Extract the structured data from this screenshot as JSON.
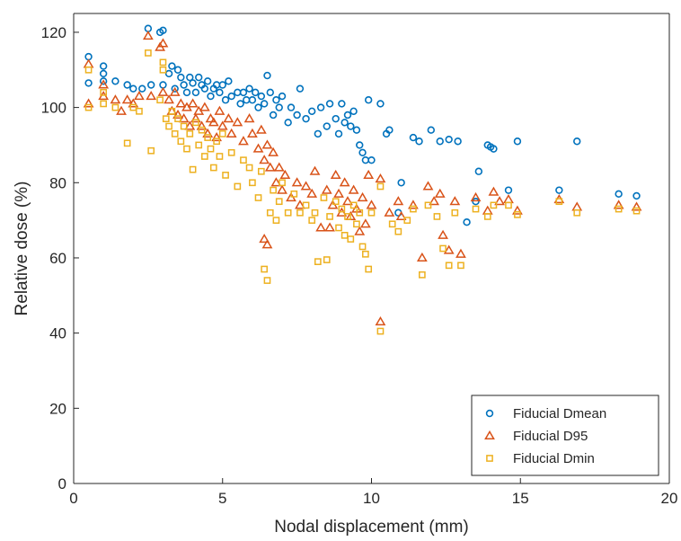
{
  "chart_data": {
    "type": "scatter",
    "xlabel": "Nodal displacement (mm)",
    "ylabel": "Relative dose (%)",
    "xlim": [
      0,
      20
    ],
    "ylim": [
      0,
      125
    ],
    "xticks": [
      0,
      5,
      10,
      15,
      20
    ],
    "yticks": [
      0,
      20,
      40,
      60,
      80,
      100,
      120
    ],
    "grid": false,
    "legend_position": "bottom-right",
    "series": [
      {
        "name": "Fiducial Dmean",
        "marker": "circle",
        "color": "#0072BD",
        "points": [
          [
            0.5,
            113.5
          ],
          [
            0.5,
            106.5
          ],
          [
            1.0,
            111.0
          ],
          [
            1.0,
            109.0
          ],
          [
            1.0,
            107.0
          ],
          [
            1.4,
            107.0
          ],
          [
            1.8,
            106.0
          ],
          [
            2.0,
            105.0
          ],
          [
            2.3,
            105.0
          ],
          [
            2.5,
            121.0
          ],
          [
            2.6,
            106.0
          ],
          [
            2.9,
            120.0
          ],
          [
            3.0,
            120.5
          ],
          [
            3.0,
            106.0
          ],
          [
            3.2,
            109.0
          ],
          [
            3.3,
            111.0
          ],
          [
            3.4,
            105.0
          ],
          [
            3.5,
            110.0
          ],
          [
            3.6,
            108.0
          ],
          [
            3.7,
            106.0
          ],
          [
            3.8,
            104.0
          ],
          [
            3.9,
            108.0
          ],
          [
            4.0,
            106.5
          ],
          [
            4.1,
            104.0
          ],
          [
            4.2,
            108.0
          ],
          [
            4.3,
            106.0
          ],
          [
            4.4,
            105.0
          ],
          [
            4.5,
            107.0
          ],
          [
            4.6,
            103.0
          ],
          [
            4.7,
            105.0
          ],
          [
            4.8,
            106.0
          ],
          [
            4.9,
            104.0
          ],
          [
            5.0,
            106.0
          ],
          [
            5.1,
            102.0
          ],
          [
            5.2,
            107.0
          ],
          [
            5.3,
            103.0
          ],
          [
            5.5,
            104.0
          ],
          [
            5.6,
            101.0
          ],
          [
            5.7,
            104.0
          ],
          [
            5.8,
            102.0
          ],
          [
            5.9,
            105.0
          ],
          [
            6.0,
            102.0
          ],
          [
            6.1,
            104.0
          ],
          [
            6.2,
            100.0
          ],
          [
            6.3,
            103.0
          ],
          [
            6.4,
            101.0
          ],
          [
            6.5,
            108.5
          ],
          [
            6.6,
            104.0
          ],
          [
            6.7,
            98.0
          ],
          [
            6.8,
            102.0
          ],
          [
            6.9,
            100.0
          ],
          [
            7.0,
            103.0
          ],
          [
            7.2,
            96.0
          ],
          [
            7.3,
            100.0
          ],
          [
            7.5,
            98.0
          ],
          [
            7.6,
            105.0
          ],
          [
            7.8,
            97.0
          ],
          [
            8.0,
            99.0
          ],
          [
            8.2,
            93.0
          ],
          [
            8.3,
            100.0
          ],
          [
            8.5,
            95.0
          ],
          [
            8.6,
            101.0
          ],
          [
            8.8,
            97.0
          ],
          [
            8.9,
            93.0
          ],
          [
            9.0,
            101.0
          ],
          [
            9.1,
            96.0
          ],
          [
            9.2,
            98.0
          ],
          [
            9.3,
            95.0
          ],
          [
            9.4,
            99.0
          ],
          [
            9.5,
            94.0
          ],
          [
            9.6,
            90.0
          ],
          [
            9.7,
            88.0
          ],
          [
            9.8,
            86.0
          ],
          [
            9.9,
            102.0
          ],
          [
            10.0,
            86.0
          ],
          [
            10.3,
            101.0
          ],
          [
            10.5,
            93.0
          ],
          [
            10.6,
            94.0
          ],
          [
            10.9,
            72.0
          ],
          [
            11.0,
            80.0
          ],
          [
            11.4,
            92.0
          ],
          [
            11.6,
            91.0
          ],
          [
            12.0,
            94.0
          ],
          [
            12.3,
            91.0
          ],
          [
            12.6,
            91.5
          ],
          [
            12.9,
            91.0
          ],
          [
            13.2,
            69.5
          ],
          [
            13.5,
            75.0
          ],
          [
            13.6,
            83.0
          ],
          [
            13.9,
            90.0
          ],
          [
            14.0,
            89.5
          ],
          [
            14.1,
            89.0
          ],
          [
            14.6,
            78.0
          ],
          [
            14.9,
            91.0
          ],
          [
            16.3,
            78.0
          ],
          [
            16.9,
            91.0
          ],
          [
            18.3,
            77.0
          ],
          [
            18.9,
            76.5
          ]
        ]
      },
      {
        "name": "Fiducial D95",
        "marker": "triangle",
        "color": "#D95319",
        "points": [
          [
            0.5,
            111.5
          ],
          [
            0.5,
            101.0
          ],
          [
            1.0,
            106.0
          ],
          [
            1.0,
            103.0
          ],
          [
            1.4,
            102.0
          ],
          [
            1.6,
            99.0
          ],
          [
            1.8,
            102.0
          ],
          [
            2.0,
            101.0
          ],
          [
            2.2,
            103.0
          ],
          [
            2.5,
            119.0
          ],
          [
            2.6,
            103.0
          ],
          [
            2.9,
            116.0
          ],
          [
            3.0,
            117.0
          ],
          [
            3.0,
            104.0
          ],
          [
            3.2,
            102.0
          ],
          [
            3.3,
            99.0
          ],
          [
            3.4,
            104.0
          ],
          [
            3.5,
            98.0
          ],
          [
            3.6,
            101.0
          ],
          [
            3.7,
            97.0
          ],
          [
            3.8,
            100.0
          ],
          [
            3.9,
            95.0
          ],
          [
            4.0,
            101.0
          ],
          [
            4.1,
            97.0
          ],
          [
            4.2,
            99.0
          ],
          [
            4.3,
            95.0
          ],
          [
            4.4,
            100.0
          ],
          [
            4.5,
            93.0
          ],
          [
            4.6,
            97.0
          ],
          [
            4.7,
            96.0
          ],
          [
            4.8,
            92.0
          ],
          [
            4.9,
            99.0
          ],
          [
            5.0,
            95.0
          ],
          [
            5.2,
            97.0
          ],
          [
            5.3,
            93.0
          ],
          [
            5.5,
            96.0
          ],
          [
            5.7,
            91.0
          ],
          [
            5.9,
            97.0
          ],
          [
            6.0,
            93.0
          ],
          [
            6.2,
            89.0
          ],
          [
            6.3,
            94.0
          ],
          [
            6.4,
            86.0
          ],
          [
            6.4,
            65.0
          ],
          [
            6.5,
            63.5
          ],
          [
            6.5,
            90.0
          ],
          [
            6.6,
            84.0
          ],
          [
            6.7,
            88.0
          ],
          [
            6.8,
            80.0
          ],
          [
            6.9,
            84.0
          ],
          [
            7.0,
            78.0
          ],
          [
            7.1,
            82.0
          ],
          [
            7.3,
            76.0
          ],
          [
            7.5,
            80.0
          ],
          [
            7.6,
            74.0
          ],
          [
            7.8,
            79.0
          ],
          [
            8.0,
            77.0
          ],
          [
            8.1,
            83.0
          ],
          [
            8.3,
            68.0
          ],
          [
            8.5,
            78.0
          ],
          [
            8.6,
            68.0
          ],
          [
            8.7,
            74.0
          ],
          [
            8.8,
            82.0
          ],
          [
            8.9,
            77.0
          ],
          [
            9.0,
            72.0
          ],
          [
            9.1,
            80.0
          ],
          [
            9.2,
            75.0
          ],
          [
            9.3,
            71.0
          ],
          [
            9.4,
            78.0
          ],
          [
            9.5,
            73.0
          ],
          [
            9.6,
            67.0
          ],
          [
            9.7,
            76.0
          ],
          [
            9.8,
            69.0
          ],
          [
            9.9,
            82.0
          ],
          [
            10.0,
            74.0
          ],
          [
            10.3,
            43.0
          ],
          [
            10.3,
            81.0
          ],
          [
            10.6,
            72.0
          ],
          [
            10.9,
            75.0
          ],
          [
            11.0,
            71.0
          ],
          [
            11.4,
            74.0
          ],
          [
            11.7,
            60.0
          ],
          [
            11.9,
            79.0
          ],
          [
            12.1,
            75.0
          ],
          [
            12.3,
            77.0
          ],
          [
            12.4,
            66.0
          ],
          [
            12.6,
            62.0
          ],
          [
            12.8,
            75.0
          ],
          [
            13.0,
            61.0
          ],
          [
            13.5,
            76.0
          ],
          [
            13.9,
            72.5
          ],
          [
            14.1,
            77.5
          ],
          [
            14.3,
            75.0
          ],
          [
            14.6,
            75.5
          ],
          [
            14.9,
            72.5
          ],
          [
            16.3,
            75.5
          ],
          [
            16.9,
            73.5
          ],
          [
            18.3,
            74.0
          ],
          [
            18.9,
            73.5
          ]
        ]
      },
      {
        "name": "Fiducial Dmin",
        "marker": "square",
        "color": "#EDB120",
        "points": [
          [
            0.5,
            110.0
          ],
          [
            0.5,
            100.0
          ],
          [
            1.0,
            104.0
          ],
          [
            1.0,
            101.0
          ],
          [
            1.4,
            100.0
          ],
          [
            1.8,
            90.5
          ],
          [
            2.0,
            100.0
          ],
          [
            2.2,
            99.0
          ],
          [
            2.5,
            114.5
          ],
          [
            2.6,
            88.5
          ],
          [
            2.9,
            102.0
          ],
          [
            3.0,
            110.0
          ],
          [
            3.0,
            112.0
          ],
          [
            3.1,
            97.0
          ],
          [
            3.2,
            95.0
          ],
          [
            3.3,
            99.0
          ],
          [
            3.4,
            93.0
          ],
          [
            3.5,
            97.0
          ],
          [
            3.6,
            91.0
          ],
          [
            3.7,
            95.0
          ],
          [
            3.8,
            89.0
          ],
          [
            3.9,
            93.0
          ],
          [
            4.0,
            83.5
          ],
          [
            4.1,
            96.0
          ],
          [
            4.2,
            90.0
          ],
          [
            4.3,
            94.0
          ],
          [
            4.4,
            87.0
          ],
          [
            4.5,
            92.0
          ],
          [
            4.6,
            89.0
          ],
          [
            4.7,
            84.0
          ],
          [
            4.8,
            91.0
          ],
          [
            4.9,
            87.0
          ],
          [
            5.0,
            93.0
          ],
          [
            5.1,
            82.0
          ],
          [
            5.3,
            88.0
          ],
          [
            5.5,
            79.0
          ],
          [
            5.7,
            86.0
          ],
          [
            5.9,
            84.0
          ],
          [
            6.0,
            80.0
          ],
          [
            6.2,
            76.0
          ],
          [
            6.3,
            83.0
          ],
          [
            6.4,
            57.0
          ],
          [
            6.5,
            54.0
          ],
          [
            6.6,
            72.0
          ],
          [
            6.7,
            78.0
          ],
          [
            6.8,
            70.0
          ],
          [
            6.9,
            75.0
          ],
          [
            7.0,
            80.0
          ],
          [
            7.2,
            72.0
          ],
          [
            7.4,
            77.0
          ],
          [
            7.6,
            72.0
          ],
          [
            7.8,
            74.0
          ],
          [
            8.0,
            70.0
          ],
          [
            8.1,
            72.0
          ],
          [
            8.2,
            59.0
          ],
          [
            8.4,
            76.0
          ],
          [
            8.5,
            59.5
          ],
          [
            8.6,
            71.0
          ],
          [
            8.8,
            75.0
          ],
          [
            8.9,
            68.0
          ],
          [
            9.0,
            73.0
          ],
          [
            9.1,
            66.0
          ],
          [
            9.2,
            71.0
          ],
          [
            9.3,
            65.0
          ],
          [
            9.4,
            74.0
          ],
          [
            9.5,
            69.0
          ],
          [
            9.6,
            72.0
          ],
          [
            9.7,
            63.0
          ],
          [
            9.8,
            61.0
          ],
          [
            9.9,
            57.0
          ],
          [
            10.0,
            72.0
          ],
          [
            10.3,
            40.5
          ],
          [
            10.3,
            79.0
          ],
          [
            10.7,
            69.0
          ],
          [
            10.9,
            67.0
          ],
          [
            11.2,
            70.0
          ],
          [
            11.4,
            73.0
          ],
          [
            11.7,
            55.5
          ],
          [
            11.9,
            74.0
          ],
          [
            12.2,
            71.0
          ],
          [
            12.4,
            62.5
          ],
          [
            12.6,
            58.0
          ],
          [
            12.8,
            72.0
          ],
          [
            13.0,
            58.0
          ],
          [
            13.5,
            73.0
          ],
          [
            13.9,
            71.0
          ],
          [
            14.1,
            74.0
          ],
          [
            14.6,
            74.0
          ],
          [
            14.9,
            71.5
          ],
          [
            16.3,
            75.0
          ],
          [
            16.9,
            72.0
          ],
          [
            18.3,
            73.0
          ],
          [
            18.9,
            72.5
          ]
        ]
      }
    ]
  }
}
